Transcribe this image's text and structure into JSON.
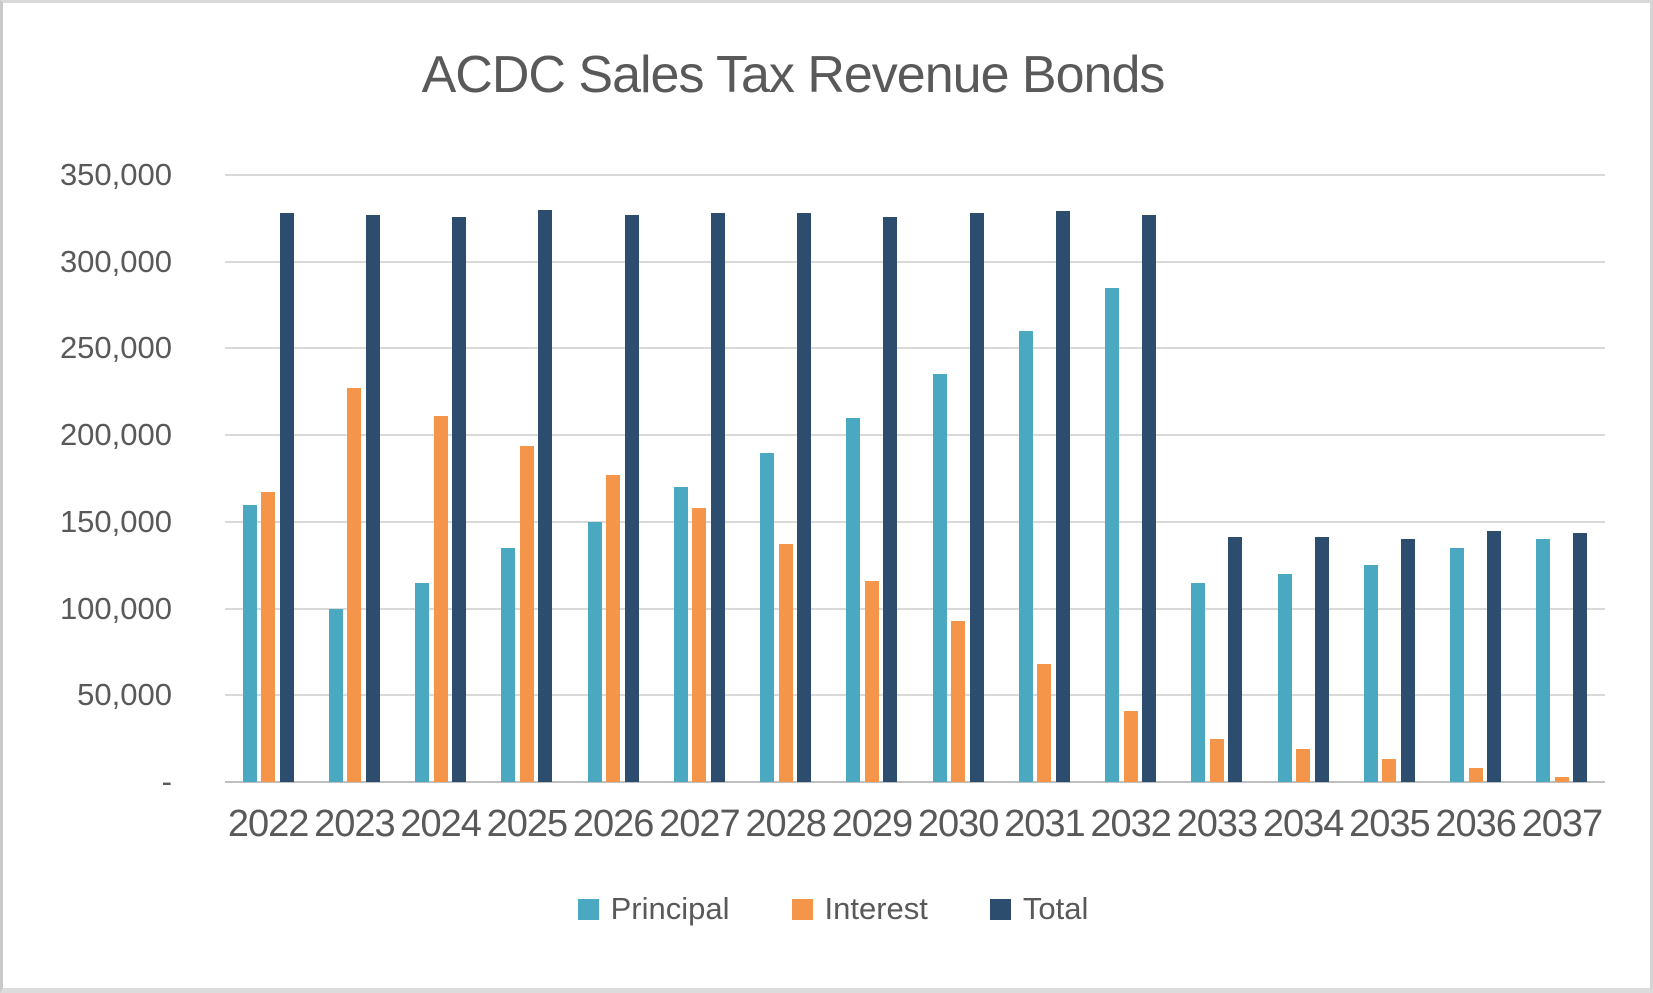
{
  "chart_data": {
    "type": "bar",
    "title": "ACDC Sales Tax Revenue Bonds",
    "xlabel": "",
    "ylabel": "",
    "ylim": [
      0,
      350000
    ],
    "grid": true,
    "legend_position": "bottom",
    "categories": [
      "2022",
      "2023",
      "2024",
      "2025",
      "2026",
      "2027",
      "2028",
      "2029",
      "2030",
      "2031",
      "2032",
      "2033",
      "2034",
      "2035",
      "2036",
      "2037"
    ],
    "series": [
      {
        "name": "Principal",
        "color": "#4AA9C1",
        "values": [
          160000,
          100000,
          115000,
          135000,
          150000,
          170000,
          190000,
          210000,
          235000,
          260000,
          285000,
          115000,
          120000,
          125000,
          135000,
          140000
        ]
      },
      {
        "name": "Interest",
        "color": "#F5954A",
        "values": [
          167000,
          227000,
          211000,
          194000,
          177000,
          158000,
          137000,
          116000,
          93000,
          68000,
          41000,
          25000,
          19000,
          13000,
          8000,
          3000
        ]
      },
      {
        "name": "Total",
        "color": "#2C4D6E",
        "values": [
          328000,
          327000,
          326000,
          330000,
          327000,
          328000,
          328000,
          326000,
          328000,
          329000,
          327000,
          141000,
          141000,
          140000,
          145000,
          143500
        ]
      }
    ],
    "y_ticks": [
      {
        "label": "350,000",
        "value": 350000
      },
      {
        "label": "300,000",
        "value": 300000
      },
      {
        "label": "250,000",
        "value": 250000
      },
      {
        "label": "200,000",
        "value": 200000
      },
      {
        "label": "150,000",
        "value": 150000
      },
      {
        "label": "100,000",
        "value": 100000
      },
      {
        "label": "50,000",
        "value": 50000
      },
      {
        "label": "-",
        "value": 0
      }
    ]
  },
  "colors": {
    "text": "#595959",
    "gridline": "#D9D9D9",
    "axis_line": "#BFBFBF"
  }
}
